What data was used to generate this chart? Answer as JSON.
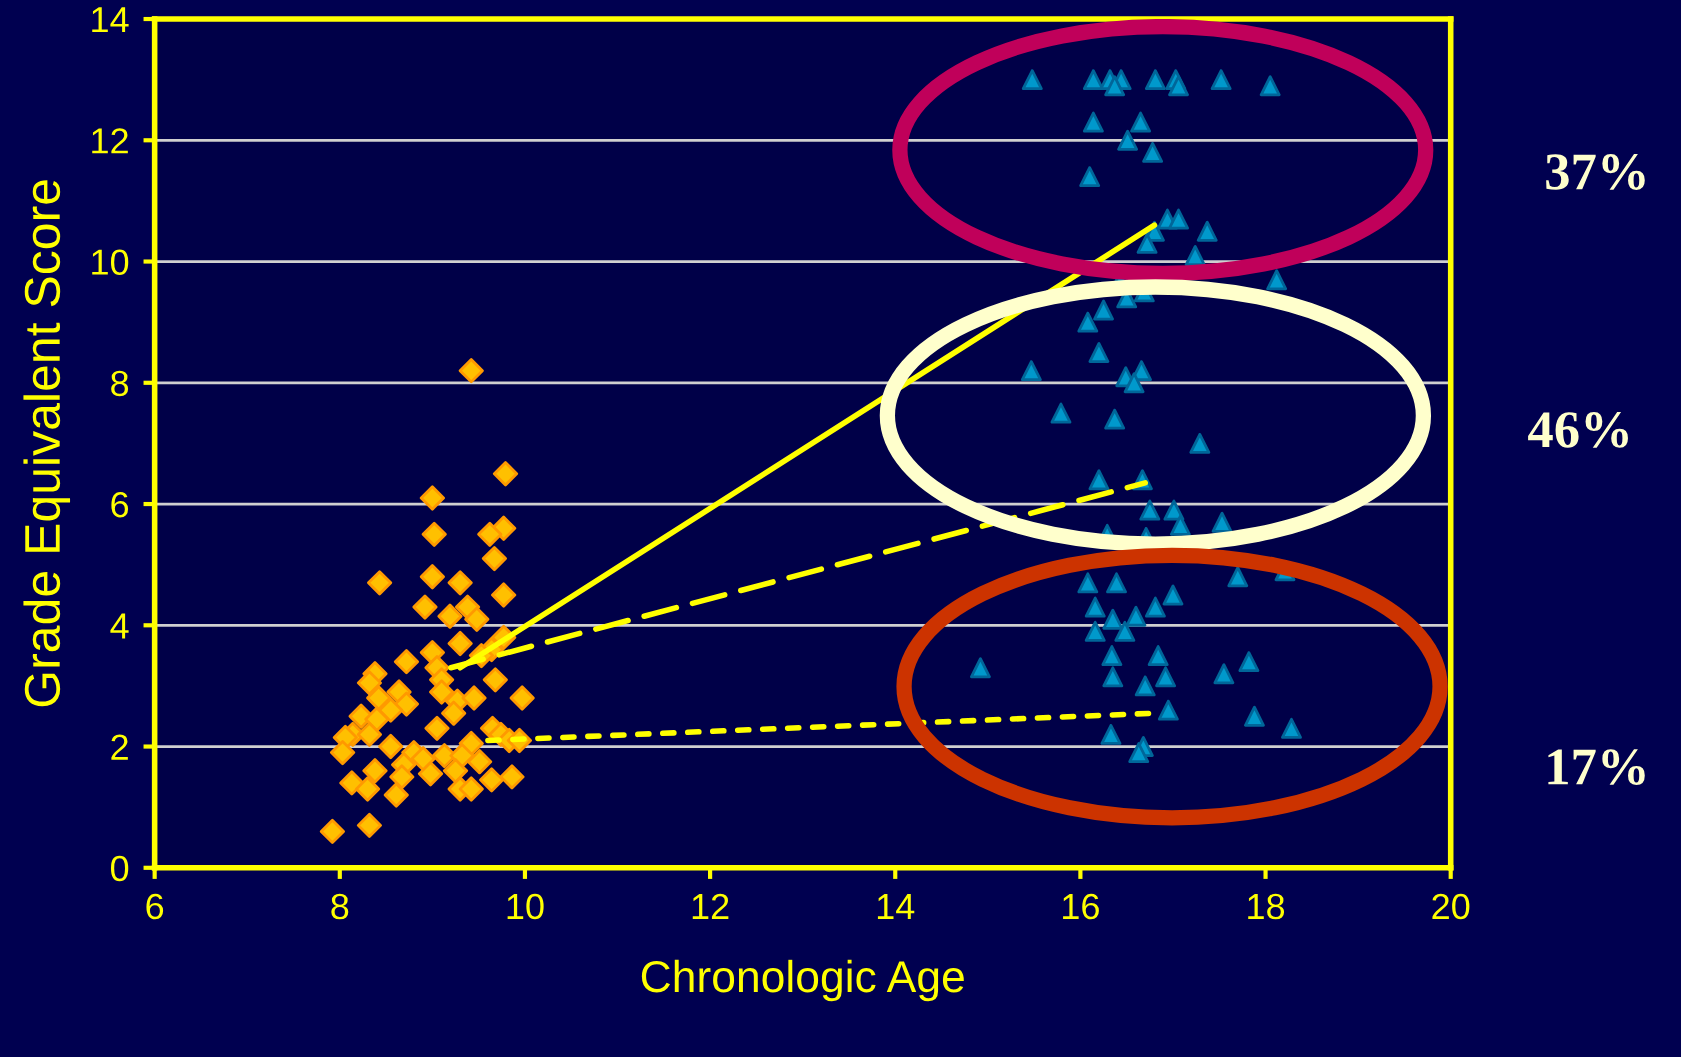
{
  "chart_data": {
    "type": "scatter",
    "xlabel": "Chronologic Age",
    "ylabel": "Grade Equivalent Score",
    "xlim": [
      6,
      20
    ],
    "xticks": [
      6,
      8,
      10,
      12,
      14,
      16,
      18,
      20
    ],
    "ylim": [
      0,
      14
    ],
    "yticks": [
      0,
      2,
      4,
      6,
      8,
      10,
      12,
      14
    ],
    "grid": "y",
    "legend": false,
    "annotations": [
      "37%",
      "46%",
      "17%"
    ],
    "series": [
      {
        "marker": "diamond",
        "color": "#ffc000",
        "x": [
          9.42,
          9.79,
          9.0,
          9.02,
          9.77,
          9.62,
          9.67,
          8.43,
          9.3,
          9.0,
          9.77,
          8.92,
          9.38,
          9.19,
          9.48,
          9.3,
          9.77,
          9.64,
          9.53,
          8.72,
          9.0,
          9.05,
          9.1,
          9.68,
          8.38,
          8.32,
          8.64,
          8.42,
          9.1,
          9.27,
          9.45,
          9.97,
          8.72,
          8.55,
          9.23,
          8.23,
          8.4,
          9.05,
          9.65,
          9.74,
          8.14,
          8.32,
          8.06,
          9.83,
          9.94,
          9.42,
          8.55,
          8.03,
          8.8,
          9.13,
          8.9,
          9.32,
          9.51,
          8.69,
          8.38,
          9.25,
          8.98,
          8.67,
          9.86,
          9.64,
          8.13,
          8.3,
          8.61,
          9.3,
          9.42,
          8.32,
          7.92
        ],
        "values": [
          8.2,
          6.5,
          6.1,
          5.5,
          5.6,
          5.5,
          5.1,
          4.7,
          4.7,
          4.8,
          4.5,
          4.3,
          4.3,
          4.15,
          4.1,
          3.7,
          3.8,
          3.6,
          3.5,
          3.4,
          3.55,
          3.3,
          3.1,
          3.1,
          3.2,
          3.05,
          2.9,
          2.8,
          2.9,
          2.75,
          2.8,
          2.8,
          2.7,
          2.6,
          2.55,
          2.5,
          2.45,
          2.3,
          2.3,
          2.2,
          2.2,
          2.2,
          2.15,
          2.1,
          2.1,
          2.05,
          2.0,
          1.9,
          1.9,
          1.85,
          1.8,
          1.85,
          1.75,
          1.7,
          1.6,
          1.6,
          1.55,
          1.5,
          1.5,
          1.45,
          1.4,
          1.3,
          1.2,
          1.3,
          1.3,
          0.7,
          0.6
        ]
      },
      {
        "marker": "triangle",
        "color": "#0099cc",
        "x": [
          15.48,
          16.14,
          16.32,
          16.44,
          16.81,
          17.03,
          17.52,
          18.05,
          16.37,
          17.06,
          16.14,
          16.65,
          16.51,
          16.78,
          16.1,
          16.94,
          17.06,
          17.37,
          16.8,
          16.72,
          17.24,
          18.12,
          16.44,
          16.08,
          16.25,
          16.5,
          16.69,
          16.2,
          15.47,
          16.49,
          16.66,
          16.58,
          15.79,
          16.37,
          17.29,
          16.2,
          16.67,
          16.75,
          17.01,
          17.08,
          17.53,
          16.29,
          16.71,
          17.47,
          18.21,
          17.7,
          16.08,
          16.39,
          17.0,
          16.81,
          16.16,
          16.6,
          16.35,
          16.48,
          16.16,
          14.92,
          16.34,
          16.84,
          17.82,
          17.55,
          16.35,
          16.92,
          16.7,
          16.95,
          17.88,
          18.28,
          16.33,
          16.68,
          16.63
        ],
        "values": [
          13.0,
          13.0,
          13.0,
          13.0,
          13.0,
          13.0,
          13.0,
          12.9,
          12.9,
          12.9,
          12.3,
          12.3,
          12.0,
          11.8,
          11.4,
          10.7,
          10.7,
          10.5,
          10.5,
          10.3,
          10.1,
          9.7,
          9.7,
          9.0,
          9.2,
          9.4,
          9.5,
          8.5,
          8.2,
          8.1,
          8.2,
          8.0,
          7.5,
          7.4,
          7.0,
          6.4,
          6.4,
          5.9,
          5.9,
          5.65,
          5.7,
          5.5,
          5.45,
          null,
          4.9,
          4.8,
          4.7,
          4.7,
          4.5,
          4.3,
          4.3,
          4.15,
          4.1,
          3.9,
          3.9,
          3.3,
          3.5,
          3.5,
          3.4,
          3.2,
          3.15,
          3.15,
          3.0,
          2.6,
          2.5,
          2.3,
          2.2,
          2.0,
          1.9
        ]
      },
      {
        "type": "line",
        "line_style": "solid",
        "color": "#ffff00",
        "x": [
          9.3,
          16.8
        ],
        "values": [
          3.3,
          10.6
        ]
      },
      {
        "type": "line",
        "line_style": "dashed",
        "color": "#ffff00",
        "x": [
          9.2,
          16.7
        ],
        "values": [
          3.3,
          6.35
        ]
      },
      {
        "type": "line",
        "line_style": "dotted",
        "color": "#ffff00",
        "x": [
          9.6,
          16.8
        ],
        "values": [
          2.1,
          2.55
        ]
      }
    ]
  }
}
